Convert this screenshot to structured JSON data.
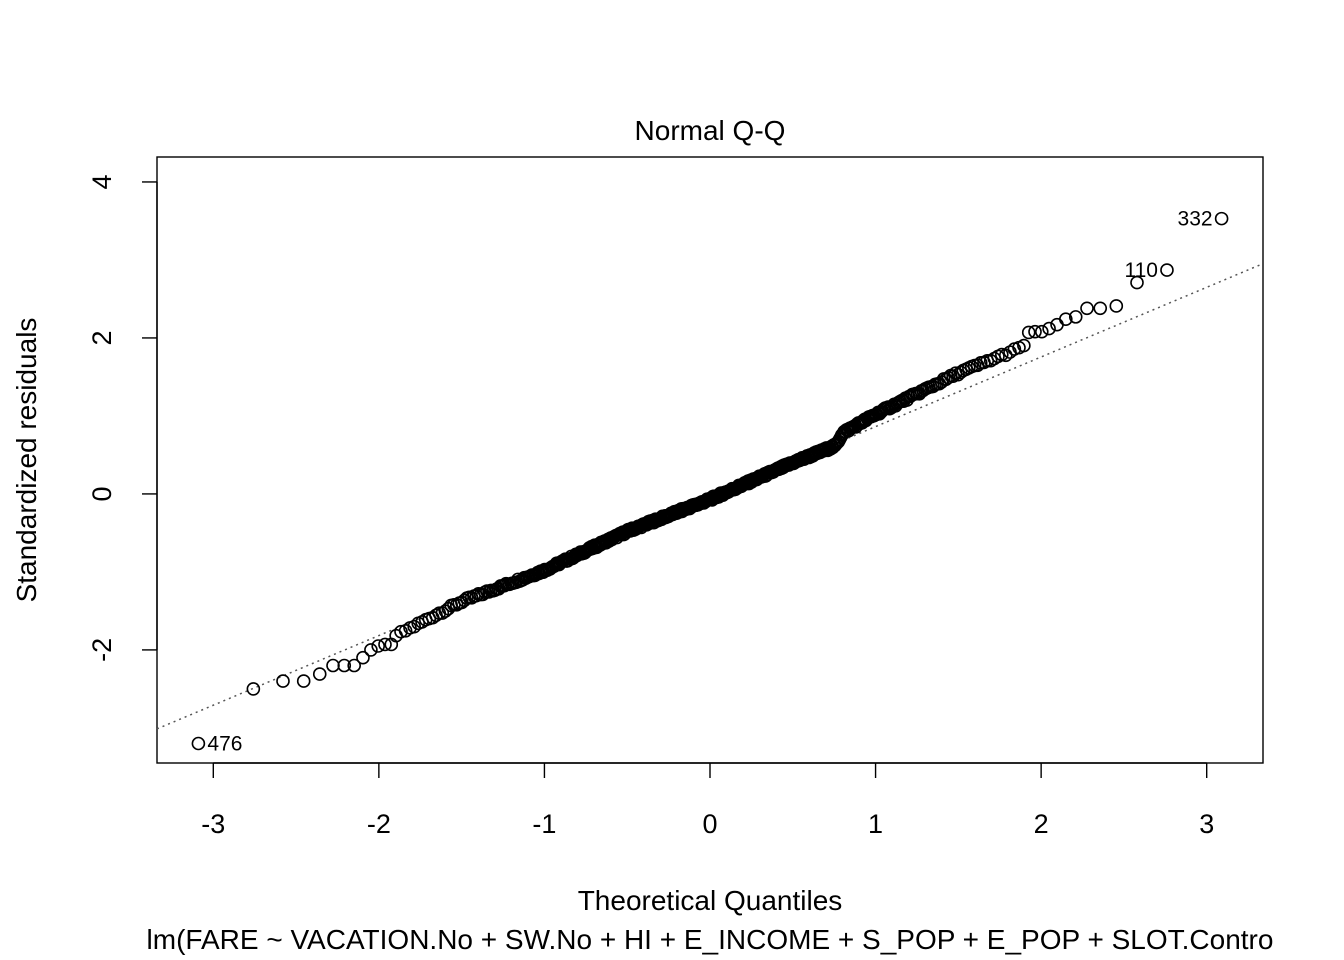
{
  "chart_data": {
    "type": "scatter",
    "title": "Normal Q-Q",
    "xlabel": "Theoretical Quantiles",
    "ylabel": "Standardized residuals",
    "caption": "lm(FARE ~ VACATION.No + SW.No + HI + E_INCOME + S_POP + E_POP + SLOT.Contro",
    "xlim": [
      -3.34,
      3.34
    ],
    "ylim": [
      -3.45,
      4.32
    ],
    "xticks": [
      -3,
      -2,
      -1,
      0,
      1,
      2,
      3
    ],
    "xtick_labels": [
      "-3",
      "-2",
      "-1",
      "0",
      "1",
      "2",
      "3"
    ],
    "yticks": [
      -2,
      0,
      2,
      4
    ],
    "ytick_labels": [
      "-2",
      "0",
      "2",
      "4"
    ],
    "grid": false,
    "reference_line": {
      "style": "dotted",
      "slope": 0.893,
      "intercept": -0.03
    },
    "n_points": 500,
    "residual_profile": {
      "q": [
        -2.9,
        -2.0,
        -1.5,
        -1.0,
        -0.5,
        0.0,
        0.5,
        0.76,
        0.8,
        1.0,
        1.5,
        2.0,
        2.4
      ],
      "r": [
        -2.7,
        -1.93,
        -1.38,
        -0.98,
        -0.48,
        -0.07,
        0.4,
        0.62,
        0.78,
        1.02,
        1.55,
        1.98,
        2.38
      ]
    },
    "points": [
      {
        "x": -2.758,
        "y": -2.5
      },
      {
        "x": -2.579,
        "y": -2.4
      },
      {
        "x": -2.454,
        "y": -2.4
      },
      {
        "x": -2.357,
        "y": -2.31
      },
      {
        "x": -2.277,
        "y": -2.2
      },
      {
        "x": -2.209,
        "y": -2.2
      },
      {
        "x": -2.149,
        "y": -2.2
      },
      {
        "x": -2.096,
        "y": -2.1
      },
      {
        "x": -2.048,
        "y": -2.0
      },
      {
        "x": -2.004,
        "y": -1.95
      },
      {
        "x": -1.963,
        "y": -1.93
      },
      {
        "x": -1.925,
        "y": -1.93
      },
      {
        "x": 1.925,
        "y": 2.07
      },
      {
        "x": 1.963,
        "y": 2.08
      },
      {
        "x": 2.004,
        "y": 2.08
      },
      {
        "x": 2.048,
        "y": 2.12
      },
      {
        "x": 2.096,
        "y": 2.17
      },
      {
        "x": 2.149,
        "y": 2.24
      },
      {
        "x": 2.209,
        "y": 2.27
      },
      {
        "x": 2.277,
        "y": 2.38
      },
      {
        "x": 2.357,
        "y": 2.38
      },
      {
        "x": 2.454,
        "y": 2.41
      },
      {
        "x": 2.579,
        "y": 2.71
      }
    ],
    "labeled_points": [
      {
        "label": "476",
        "x": -3.09,
        "y": -3.2
      },
      {
        "label": "110",
        "x": 2.76,
        "y": 2.87
      },
      {
        "label": "332",
        "x": 3.09,
        "y": 3.53
      }
    ]
  }
}
